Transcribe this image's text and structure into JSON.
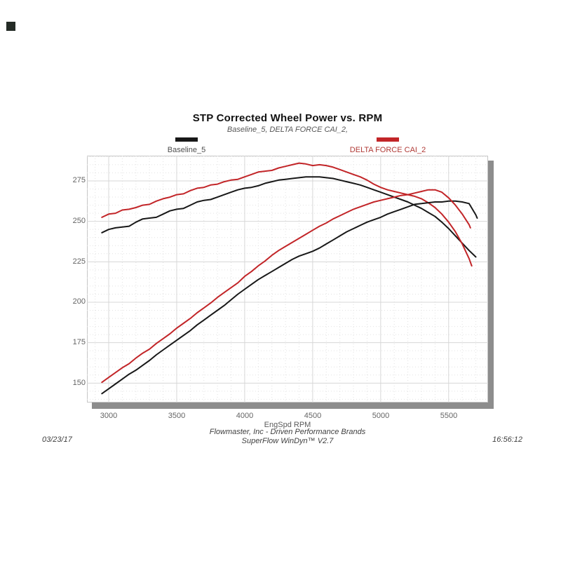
{
  "page": {
    "corner_mark_color": "#242b26",
    "shadow_color": "#8d8d8d"
  },
  "header": {
    "title": "STP Corrected Wheel Power vs. RPM",
    "subtitle": "Baseline_5, DELTA FORCE CAI_2,"
  },
  "legend": [
    {
      "label": "Baseline_5",
      "swatch_color": "#181818",
      "label_color": "#4d4d4d"
    },
    {
      "label": "DELTA FORCE CAI_2",
      "swatch_color": "#c22528",
      "label_color": "#b03a36"
    }
  ],
  "footer": {
    "date": "03/23/17",
    "center_line1": "Flowmaster, Inc - Driven Performance Brands",
    "center_line2": "SuperFlow WinDyn™ V2.7",
    "time": "16:56:12"
  },
  "chart_data": {
    "type": "line",
    "title": "STP Corrected Wheel Power vs. RPM",
    "subtitle": "Baseline_5, DELTA FORCE CAI_2,",
    "xlabel": "EngSpd RPM",
    "ylabel": "",
    "x_range": [
      2840,
      5790
    ],
    "y_range": [
      138,
      290.6
    ],
    "x_ticks": [
      3000,
      3500,
      4000,
      4500,
      5000,
      5500
    ],
    "y_ticks": [
      150,
      175,
      200,
      225,
      250,
      275
    ],
    "grid": {
      "major": "solid",
      "minor_x_step": 100,
      "minor_y_step": 5,
      "legend_position": "top"
    },
    "major_grid_color": "#d7d7d7",
    "minor_grid_color": "#e2e2e2",
    "series": [
      {
        "name": "Baseline_5",
        "curve": "upper",
        "color": "#181818",
        "points": [
          [
            2950,
            243
          ],
          [
            3000,
            245
          ],
          [
            3050,
            246
          ],
          [
            3100,
            246.5
          ],
          [
            3150,
            247
          ],
          [
            3200,
            249.5
          ],
          [
            3250,
            251.5
          ],
          [
            3300,
            252
          ],
          [
            3350,
            252.5
          ],
          [
            3400,
            254.5
          ],
          [
            3450,
            256.5
          ],
          [
            3500,
            257.5
          ],
          [
            3550,
            258
          ],
          [
            3600,
            260
          ],
          [
            3650,
            262
          ],
          [
            3700,
            263
          ],
          [
            3750,
            263.5
          ],
          [
            3800,
            265
          ],
          [
            3850,
            266.5
          ],
          [
            3900,
            268
          ],
          [
            3950,
            269.5
          ],
          [
            4000,
            270.5
          ],
          [
            4050,
            271
          ],
          [
            4100,
            272
          ],
          [
            4150,
            273.5
          ],
          [
            4200,
            274.5
          ],
          [
            4250,
            275.5
          ],
          [
            4300,
            276
          ],
          [
            4350,
            276.5
          ],
          [
            4400,
            277
          ],
          [
            4450,
            277.5
          ],
          [
            4500,
            277.5
          ],
          [
            4550,
            277.5
          ],
          [
            4600,
            277
          ],
          [
            4650,
            276.5
          ],
          [
            4700,
            275.5
          ],
          [
            4750,
            274.5
          ],
          [
            4800,
            273.5
          ],
          [
            4850,
            272.5
          ],
          [
            4900,
            271
          ],
          [
            4950,
            269.5
          ],
          [
            5000,
            268
          ],
          [
            5050,
            266.5
          ],
          [
            5100,
            265
          ],
          [
            5150,
            263.5
          ],
          [
            5200,
            262
          ],
          [
            5250,
            260
          ],
          [
            5300,
            258
          ],
          [
            5350,
            255.5
          ],
          [
            5400,
            253
          ],
          [
            5450,
            249.5
          ],
          [
            5500,
            245.5
          ],
          [
            5550,
            241
          ],
          [
            5600,
            236.5
          ],
          [
            5650,
            232
          ],
          [
            5700,
            228
          ]
        ]
      },
      {
        "name": "DELTA FORCE CAI_2",
        "curve": "upper",
        "color": "#c22528",
        "points": [
          [
            2950,
            252.5
          ],
          [
            3000,
            254.5
          ],
          [
            3050,
            255
          ],
          [
            3100,
            257
          ],
          [
            3150,
            257.5
          ],
          [
            3200,
            258.5
          ],
          [
            3250,
            260
          ],
          [
            3300,
            260.5
          ],
          [
            3350,
            262.5
          ],
          [
            3400,
            264
          ],
          [
            3450,
            265
          ],
          [
            3500,
            266.5
          ],
          [
            3550,
            267
          ],
          [
            3600,
            269
          ],
          [
            3650,
            270.5
          ],
          [
            3700,
            271
          ],
          [
            3750,
            272.5
          ],
          [
            3800,
            273
          ],
          [
            3850,
            274.5
          ],
          [
            3900,
            275.5
          ],
          [
            3950,
            276
          ],
          [
            4000,
            277.5
          ],
          [
            4050,
            279
          ],
          [
            4100,
            280.5
          ],
          [
            4150,
            281
          ],
          [
            4200,
            281.5
          ],
          [
            4250,
            283
          ],
          [
            4300,
            284
          ],
          [
            4350,
            285
          ],
          [
            4400,
            286
          ],
          [
            4450,
            285.5
          ],
          [
            4500,
            284.5
          ],
          [
            4550,
            285
          ],
          [
            4600,
            284.5
          ],
          [
            4650,
            283.5
          ],
          [
            4700,
            282
          ],
          [
            4750,
            280.5
          ],
          [
            4800,
            279
          ],
          [
            4850,
            277.5
          ],
          [
            4900,
            275.5
          ],
          [
            4950,
            273
          ],
          [
            5000,
            271
          ],
          [
            5050,
            269.5
          ],
          [
            5100,
            268.5
          ],
          [
            5150,
            267.5
          ],
          [
            5200,
            266.5
          ],
          [
            5250,
            265.5
          ],
          [
            5300,
            264
          ],
          [
            5350,
            261.5
          ],
          [
            5400,
            258.5
          ],
          [
            5450,
            254.5
          ],
          [
            5500,
            249.5
          ],
          [
            5550,
            243.5
          ],
          [
            5600,
            236
          ],
          [
            5650,
            227
          ],
          [
            5670,
            222.5
          ]
        ]
      },
      {
        "name": "Baseline_5",
        "curve": "lower",
        "color": "#181818",
        "points": [
          [
            2950,
            143.5
          ],
          [
            3000,
            146.5
          ],
          [
            3050,
            149.5
          ],
          [
            3100,
            152.5
          ],
          [
            3150,
            155.5
          ],
          [
            3200,
            158
          ],
          [
            3250,
            161
          ],
          [
            3300,
            164
          ],
          [
            3350,
            167.5
          ],
          [
            3400,
            170.5
          ],
          [
            3450,
            173.5
          ],
          [
            3500,
            176.5
          ],
          [
            3550,
            179.5
          ],
          [
            3600,
            182.5
          ],
          [
            3650,
            186
          ],
          [
            3700,
            189
          ],
          [
            3750,
            192
          ],
          [
            3800,
            195
          ],
          [
            3850,
            198
          ],
          [
            3900,
            201.5
          ],
          [
            3950,
            205
          ],
          [
            4000,
            208
          ],
          [
            4050,
            211
          ],
          [
            4100,
            214
          ],
          [
            4150,
            216.5
          ],
          [
            4200,
            219
          ],
          [
            4250,
            221.5
          ],
          [
            4300,
            224
          ],
          [
            4350,
            226.5
          ],
          [
            4400,
            228.5
          ],
          [
            4450,
            230
          ],
          [
            4500,
            231.5
          ],
          [
            4550,
            233.5
          ],
          [
            4600,
            236
          ],
          [
            4650,
            238.5
          ],
          [
            4700,
            241
          ],
          [
            4750,
            243.5
          ],
          [
            4800,
            245.5
          ],
          [
            4850,
            247.5
          ],
          [
            4900,
            249.5
          ],
          [
            4950,
            251
          ],
          [
            5000,
            252.5
          ],
          [
            5050,
            254.5
          ],
          [
            5100,
            256
          ],
          [
            5150,
            257.5
          ],
          [
            5200,
            259
          ],
          [
            5250,
            260.5
          ],
          [
            5300,
            261
          ],
          [
            5350,
            261.5
          ],
          [
            5400,
            262
          ],
          [
            5450,
            262
          ],
          [
            5500,
            262.5
          ],
          [
            5550,
            262.5
          ],
          [
            5600,
            262
          ],
          [
            5650,
            261
          ],
          [
            5700,
            254
          ],
          [
            5710,
            252
          ]
        ]
      },
      {
        "name": "DELTA FORCE CAI_2",
        "curve": "lower",
        "color": "#c22528",
        "points": [
          [
            2950,
            150.5
          ],
          [
            3000,
            153.5
          ],
          [
            3050,
            156.5
          ],
          [
            3100,
            159.5
          ],
          [
            3150,
            162
          ],
          [
            3200,
            165.5
          ],
          [
            3250,
            168.5
          ],
          [
            3300,
            171
          ],
          [
            3350,
            174.5
          ],
          [
            3400,
            177.5
          ],
          [
            3450,
            180.5
          ],
          [
            3500,
            184
          ],
          [
            3550,
            187
          ],
          [
            3600,
            190
          ],
          [
            3650,
            193.5
          ],
          [
            3700,
            196.5
          ],
          [
            3750,
            199.5
          ],
          [
            3800,
            203
          ],
          [
            3850,
            206
          ],
          [
            3900,
            209
          ],
          [
            3950,
            212
          ],
          [
            4000,
            216
          ],
          [
            4050,
            219
          ],
          [
            4100,
            222.5
          ],
          [
            4150,
            225.5
          ],
          [
            4200,
            229
          ],
          [
            4250,
            232
          ],
          [
            4300,
            234.5
          ],
          [
            4350,
            237
          ],
          [
            4400,
            239.5
          ],
          [
            4450,
            242
          ],
          [
            4500,
            244.5
          ],
          [
            4550,
            247
          ],
          [
            4600,
            249
          ],
          [
            4650,
            251.5
          ],
          [
            4700,
            253.5
          ],
          [
            4750,
            255.5
          ],
          [
            4800,
            257.5
          ],
          [
            4850,
            259
          ],
          [
            4900,
            260.5
          ],
          [
            4950,
            262
          ],
          [
            5000,
            263
          ],
          [
            5050,
            264
          ],
          [
            5100,
            265
          ],
          [
            5150,
            266
          ],
          [
            5200,
            266.5
          ],
          [
            5250,
            267.5
          ],
          [
            5300,
            268.5
          ],
          [
            5350,
            269.5
          ],
          [
            5400,
            269.5
          ],
          [
            5450,
            268
          ],
          [
            5500,
            264.5
          ],
          [
            5550,
            260
          ],
          [
            5600,
            254.5
          ],
          [
            5650,
            248
          ],
          [
            5660,
            246
          ]
        ]
      }
    ]
  }
}
